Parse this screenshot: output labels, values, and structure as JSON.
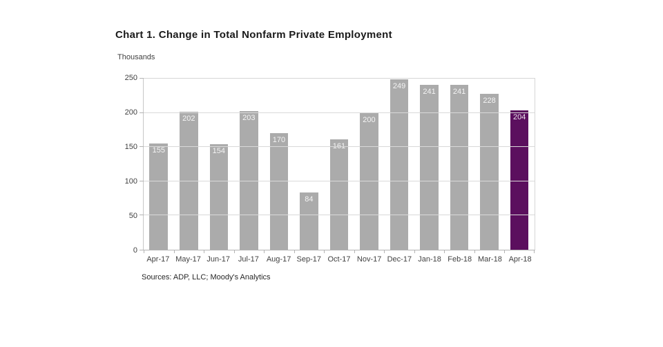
{
  "page": {
    "title": "Chart 1. Change in Total Nonfarm Private Employment",
    "units_label": "Thousands",
    "source_note": "Sources: ADP, LLC; Moody's Analytics"
  },
  "chart_data": {
    "type": "bar",
    "title": "Chart 1. Change in Total Nonfarm Private Employment",
    "ylabel": "Thousands",
    "xlabel": "",
    "categories": [
      "Apr-17",
      "May-17",
      "Jun-17",
      "Jul-17",
      "Aug-17",
      "Sep-17",
      "Oct-17",
      "Nov-17",
      "Dec-17",
      "Jan-18",
      "Feb-18",
      "Mar-18",
      "Apr-18"
    ],
    "values": [
      155,
      202,
      154,
      203,
      170,
      84,
      161,
      200,
      249,
      241,
      241,
      228,
      204
    ],
    "ylim": [
      0,
      250
    ],
    "yticks": [
      0,
      50,
      100,
      150,
      200,
      250
    ],
    "grid": true,
    "legend_position": "none",
    "value_labels": true,
    "bar_color": "#ABABAB",
    "highlight_index": 12,
    "highlight_color": "#5B0F5E",
    "value_label_color": "rgba(255,255,255,0.88)",
    "source": "Sources: ADP, LLC; Moody's Analytics"
  }
}
